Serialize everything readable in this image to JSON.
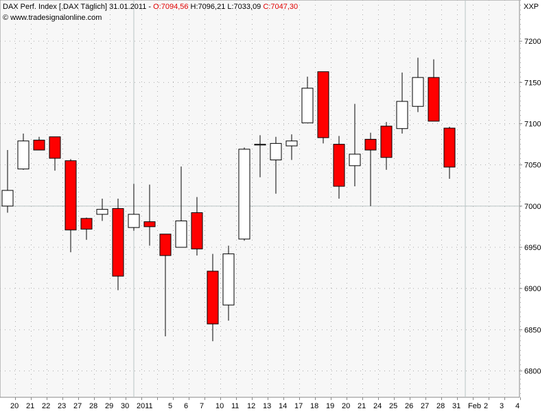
{
  "header": {
    "instrument": "DAX Perf. Index [.DAX  Täglich] 31.01.2011 -",
    "open": "O:7094,56",
    "high_low": "H:7096,21 L:7033,09",
    "close": "C:7047,30",
    "copyright": "© www.tradesignalonline.com",
    "exchange": "XXP"
  },
  "chart_data": {
    "type": "candlestick",
    "categories": [
      "20",
      "21",
      "22",
      "23",
      "27",
      "28",
      "29",
      "30",
      "2011",
      null,
      "5",
      "6",
      "7",
      "10",
      "11",
      "12",
      "13",
      "14",
      "17",
      "18",
      "19",
      "20",
      "21",
      "24",
      "25",
      "26",
      "27",
      "28",
      "31",
      "Feb",
      "2",
      "3",
      "4"
    ],
    "open": [
      7000,
      7045,
      7080,
      7084,
      7055,
      6985,
      6990,
      6997,
      6974,
      6981,
      6966,
      6950,
      6992,
      6921,
      6880,
      6960,
      7074,
      7056,
      7073,
      7101,
      7163,
      7075,
      7049,
      7081,
      7097,
      7094,
      7121,
      7156,
      7094.56,
      null,
      null,
      null,
      null
    ],
    "high": [
      7068,
      7088,
      7084,
      7084,
      7057,
      6986,
      7009,
      7009,
      7027,
      7026,
      6966,
      7048,
      7011,
      6942,
      6952,
      7071,
      7086,
      7084,
      7087,
      7157,
      7163,
      7085,
      7124,
      7089,
      7102,
      7162,
      7180,
      7178,
      7096.21,
      null,
      null,
      null,
      null
    ],
    "low": [
      6992,
      7044,
      7068,
      7043,
      6944,
      6959,
      6982,
      6898,
      6970,
      6952,
      6842,
      6950,
      6940,
      6836,
      6861,
      6958,
      7035,
      7015,
      7056,
      7101,
      7076,
      7009,
      7024,
      7000,
      7044,
      7088,
      7114,
      7103,
      7033.09,
      null,
      null,
      null,
      null
    ],
    "close": [
      7019,
      7079,
      7068,
      7058,
      6971,
      6972,
      6996,
      6915,
      6990,
      6975,
      6940,
      6982,
      6948,
      6857,
      6942,
      7069,
      7075,
      7076,
      7079,
      7143,
      7083,
      7024,
      7063,
      7068,
      7059,
      7127,
      7156,
      7103,
      7047.3,
      null,
      null,
      null,
      null
    ],
    "up_color": "#ffffff",
    "down_color": "#ff0000",
    "ylim": [
      6768,
      7250
    ],
    "yticks": [
      6800,
      6850,
      6900,
      6950,
      7000,
      7050,
      7100,
      7150,
      7200
    ],
    "grid": true,
    "reference_line": 7000
  }
}
